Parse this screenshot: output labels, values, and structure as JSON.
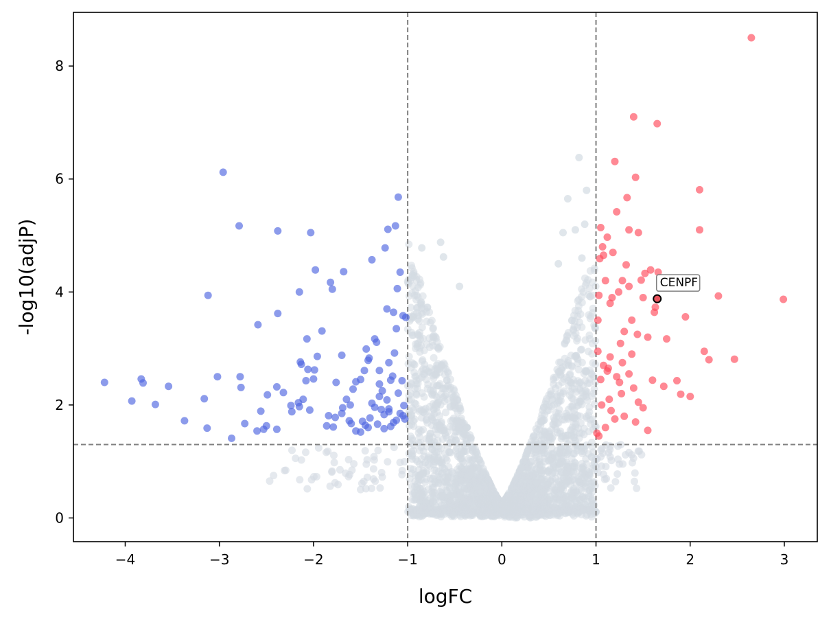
{
  "chart_data": {
    "type": "scatter",
    "title": "",
    "xlabel": "logFC",
    "ylabel": "-log10(adjP)",
    "xlim": [
      -4.55,
      3.35
    ],
    "ylim": [
      -0.42,
      8.95
    ],
    "xticks": [
      -4,
      -3,
      -2,
      -1,
      0,
      1,
      2,
      3
    ],
    "xtick_labels": [
      "−4",
      "−3",
      "−2",
      "−1",
      "0",
      "1",
      "2",
      "3"
    ],
    "yticks": [
      0,
      2,
      4,
      6,
      8
    ],
    "ytick_labels": [
      "0",
      "2",
      "4",
      "6",
      "8"
    ],
    "grid": false,
    "legend": "none",
    "thresholds": {
      "logFC": [
        -1,
        1
      ],
      "neg_log10_adjP": 1.3
    },
    "colors": {
      "down": "#4f66e0",
      "up": "#ff4a5a",
      "ns": "#d3dbe2",
      "threshold_line": "#808080"
    },
    "series": [
      {
        "group": "down",
        "x": [
          -4.22,
          -3.93,
          -3.83,
          -3.81,
          -3.68,
          -3.54,
          -3.37,
          -3.16,
          -3.13,
          -3.12,
          -3.02,
          -2.96,
          -2.87,
          -2.79,
          -2.78,
          -2.77,
          -2.73,
          -2.6,
          -2.59,
          -2.56,
          -2.53,
          -2.5,
          -2.49,
          -2.39,
          -2.39,
          -2.38,
          -2.38,
          -2.32,
          -2.24,
          -2.23,
          -2.16,
          -2.15,
          -2.15,
          -2.14,
          -2.13,
          -2.11,
          -2.08,
          -2.07,
          -2.06,
          -2.04,
          -2.03,
          -2.0,
          -1.99,
          -1.98,
          -1.96,
          -1.91,
          -1.86,
          -1.84,
          -1.82,
          -1.8,
          -1.79,
          -1.77,
          -1.76,
          -1.7,
          -1.69,
          -1.68,
          -1.65,
          -1.62,
          -1.61,
          -1.58,
          -1.55,
          -1.5,
          -1.46,
          -1.44,
          -1.42,
          -1.41,
          -1.38,
          -1.35,
          -1.33,
          -1.3,
          -1.27,
          -1.25,
          -1.24,
          -1.22,
          -1.21,
          -1.2,
          -1.18,
          -1.16,
          -1.15,
          -1.14,
          -1.13,
          -1.12,
          -1.11,
          -1.1,
          -1.08,
          -1.06,
          -1.05,
          -1.04,
          -1.03,
          -1.02,
          -1.5,
          -1.45,
          -1.4,
          -1.35,
          -1.3,
          -1.25,
          -1.2,
          -1.15,
          -1.1,
          -1.05,
          -1.48,
          -1.38,
          -1.28,
          -1.18,
          -1.08,
          -1.55,
          -1.32,
          -1.22,
          -1.12,
          -1.42,
          -1.6,
          -1.7,
          -1.2,
          -1.3
        ],
        "y": [
          2.4,
          2.07,
          2.46,
          2.39,
          2.01,
          2.33,
          1.72,
          2.11,
          1.59,
          3.94,
          2.5,
          6.12,
          1.41,
          5.17,
          2.5,
          2.31,
          1.67,
          1.54,
          3.42,
          1.89,
          1.57,
          1.63,
          2.18,
          1.57,
          2.32,
          3.62,
          5.08,
          2.22,
          1.99,
          1.88,
          2.04,
          1.97,
          4.0,
          2.76,
          2.72,
          2.1,
          2.43,
          3.17,
          2.63,
          1.91,
          5.05,
          2.46,
          2.62,
          4.39,
          2.86,
          3.31,
          1.63,
          1.81,
          4.17,
          4.05,
          1.61,
          1.78,
          2.4,
          2.88,
          1.95,
          4.36,
          2.1,
          1.72,
          2.0,
          2.28,
          2.41,
          2.45,
          2.61,
          2.99,
          2.79,
          2.83,
          4.57,
          3.17,
          3.11,
          2.61,
          2.25,
          1.83,
          4.78,
          3.7,
          5.11,
          2.75,
          2.44,
          2.51,
          3.64,
          2.92,
          5.17,
          3.35,
          4.06,
          5.68,
          4.35,
          2.43,
          3.58,
          1.99,
          1.75,
          3.55,
          1.52,
          1.64,
          1.77,
          1.96,
          2.15,
          1.58,
          1.88,
          1.69,
          2.21,
          1.81,
          1.71,
          2.03,
          1.92,
          1.62,
          1.85,
          1.54,
          1.66,
          2.09,
          1.73,
          1.6,
          1.67,
          1.85,
          1.93,
          2.37
        ]
      },
      {
        "group": "up",
        "x": [
          2.65,
          1.4,
          1.65,
          1.2,
          1.42,
          2.1,
          1.33,
          1.22,
          1.35,
          1.45,
          2.1,
          1.12,
          1.58,
          1.66,
          2.3,
          2.99,
          1.95,
          1.62,
          1.63,
          1.75,
          1.55,
          1.44,
          1.38,
          1.3,
          1.26,
          1.17,
          1.1,
          1.07,
          1.05,
          1.04,
          1.03,
          1.02,
          1.02,
          1.15,
          1.24,
          1.28,
          1.35,
          1.5,
          1.6,
          1.72,
          1.86,
          1.9,
          2.0,
          2.15,
          2.2,
          2.47,
          1.48,
          1.52,
          1.32,
          1.18,
          1.08,
          1.12,
          1.22,
          1.4,
          1.27,
          1.14,
          1.06,
          1.16,
          1.3,
          1.42,
          1.1,
          1.2,
          1.25,
          1.35,
          1.05,
          1.13,
          1.45,
          1.5,
          1.15,
          1.08,
          1.28,
          1.38,
          1.55,
          1.03,
          1.01
        ],
        "y": [
          8.5,
          7.1,
          6.98,
          6.31,
          6.03,
          5.81,
          5.67,
          5.42,
          5.1,
          5.05,
          5.1,
          4.97,
          4.39,
          4.35,
          3.93,
          3.87,
          3.56,
          3.64,
          3.73,
          3.17,
          3.2,
          3.25,
          3.5,
          3.3,
          3.09,
          3.9,
          4.2,
          4.8,
          5.14,
          4.59,
          3.94,
          3.5,
          2.95,
          3.8,
          4.0,
          4.2,
          4.1,
          3.9,
          2.44,
          2.33,
          2.43,
          2.19,
          2.15,
          2.95,
          2.8,
          2.81,
          4.21,
          4.33,
          4.48,
          4.7,
          4.65,
          2.6,
          2.5,
          2.3,
          2.2,
          2.1,
          2.0,
          1.9,
          1.8,
          1.7,
          1.6,
          1.75,
          2.4,
          2.55,
          2.45,
          2.65,
          2.05,
          1.95,
          2.85,
          2.7,
          2.75,
          2.9,
          1.55,
          1.45,
          1.5
        ]
      }
    ],
    "annotations": [
      {
        "label": "CENPF",
        "x": 1.65,
        "y": 3.88
      }
    ]
  }
}
